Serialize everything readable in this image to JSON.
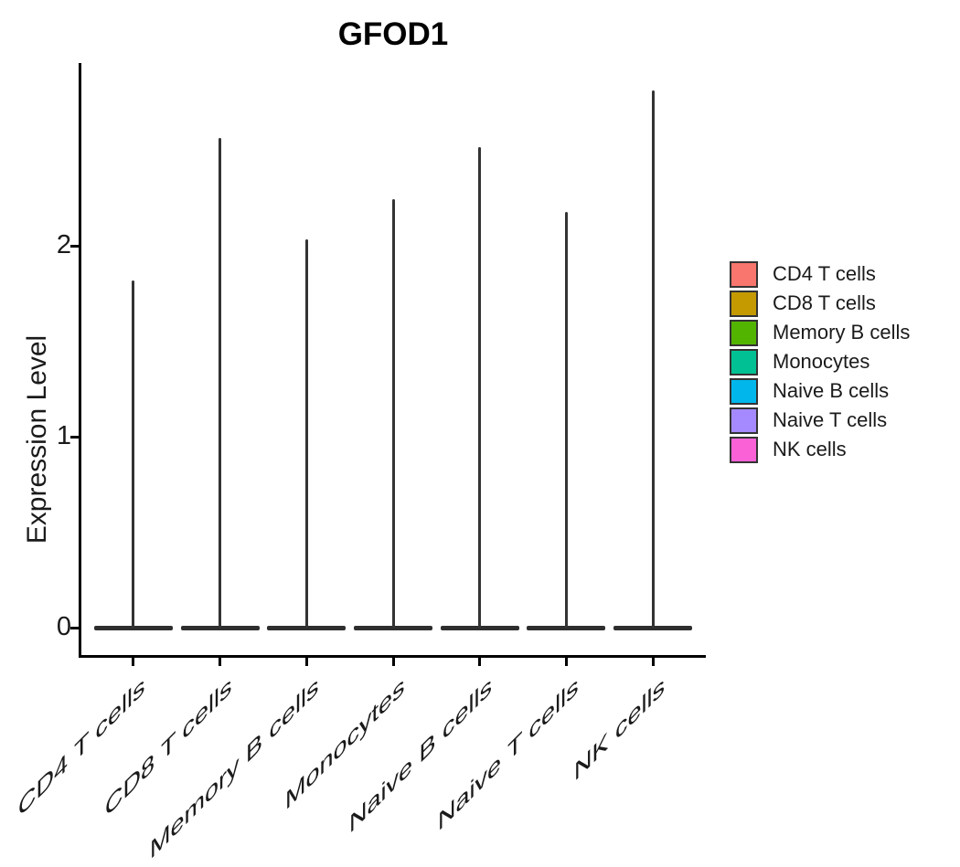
{
  "title": "GFOD1",
  "chart_data": {
    "type": "violin",
    "title": "GFOD1",
    "xlabel": "",
    "ylabel": "Expression Level",
    "categories": [
      "CD4 T cells",
      "CD8 T cells",
      "Memory B cells",
      "Monocytes",
      "Naive B cells",
      "Naive T cells",
      "NK cells"
    ],
    "values_max": [
      1.82,
      2.57,
      2.04,
      2.25,
      2.52,
      2.18,
      2.82
    ],
    "values_mode": 0,
    "description": "Each violin is collapsed at expression 0 with a thin spike up to the max expression value",
    "yticks": [
      0,
      1,
      2
    ],
    "ylim": [
      -0.14,
      2.96
    ],
    "grid": false,
    "violin_outline_color": "#333333",
    "axis_color": "#000000",
    "legend": {
      "position": "right",
      "entries": [
        {
          "label": "CD4 T cells",
          "color": "#F8766D"
        },
        {
          "label": "CD8 T cells",
          "color": "#C49A00"
        },
        {
          "label": "Memory B cells",
          "color": "#53B400"
        },
        {
          "label": "Monocytes",
          "color": "#00C094"
        },
        {
          "label": "Naive B cells",
          "color": "#00B6EB"
        },
        {
          "label": "Naive T cells",
          "color": "#A58AFF"
        },
        {
          "label": "NK cells",
          "color": "#FB61D7"
        }
      ]
    }
  }
}
